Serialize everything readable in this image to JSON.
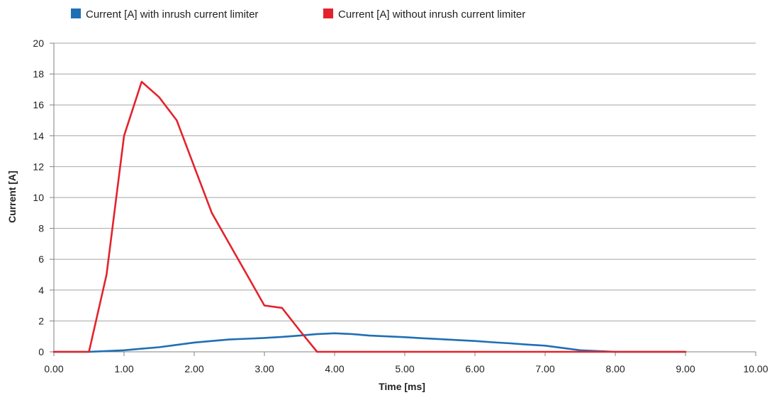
{
  "chart_data": {
    "type": "line",
    "xlabel": "Time [ms]",
    "ylabel": "Current [A]",
    "xlim": [
      0,
      10
    ],
    "ylim": [
      0,
      20
    ],
    "xticks": [
      0,
      1,
      2,
      3,
      4,
      5,
      6,
      7,
      8,
      9,
      10
    ],
    "xtick_labels": [
      "0.00",
      "1.00",
      "2.00",
      "3.00",
      "4.00",
      "5.00",
      "6.00",
      "7.00",
      "8.00",
      "9.00",
      "10.00"
    ],
    "yticks": [
      0,
      2,
      4,
      6,
      8,
      10,
      12,
      14,
      16,
      18,
      20
    ],
    "ytick_labels": [
      "0",
      "2",
      "4",
      "6",
      "8",
      "10",
      "12",
      "14",
      "16",
      "18",
      "20"
    ],
    "grid": "horizontal",
    "legend_position": "top-left",
    "series": [
      {
        "name": "Current [A] with inrush current limiter",
        "color": "#1f6fb5",
        "x": [
          0,
          0.25,
          0.5,
          0.75,
          1.0,
          1.25,
          1.5,
          1.75,
          2.0,
          2.25,
          2.5,
          2.75,
          3.0,
          3.25,
          3.5,
          3.75,
          4.0,
          4.25,
          4.5,
          4.75,
          5.0,
          5.25,
          5.5,
          5.75,
          6.0,
          6.25,
          6.5,
          6.75,
          7.0,
          7.25,
          7.5,
          7.75,
          8.0,
          8.25,
          8.5,
          8.75,
          9.0
        ],
        "y": [
          0,
          0,
          0,
          0.05,
          0.1,
          0.2,
          0.3,
          0.45,
          0.6,
          0.7,
          0.8,
          0.85,
          0.9,
          0.97,
          1.05,
          1.15,
          1.2,
          1.15,
          1.05,
          1.0,
          0.95,
          0.88,
          0.82,
          0.76,
          0.7,
          0.62,
          0.55,
          0.47,
          0.4,
          0.25,
          0.1,
          0.05,
          0,
          0,
          0,
          0,
          0
        ]
      },
      {
        "name": "Current [A] without inrush current limiter",
        "color": "#e3232c",
        "x": [
          0,
          0.25,
          0.5,
          0.75,
          1.0,
          1.25,
          1.5,
          1.75,
          2.0,
          2.25,
          2.5,
          2.75,
          3.0,
          3.25,
          3.5,
          3.75,
          4.0,
          4.5,
          5.0,
          5.5,
          6.0,
          6.5,
          7.0,
          7.5,
          8.0,
          8.5,
          9.0
        ],
        "y": [
          0,
          0,
          0,
          5,
          14,
          17.5,
          16.5,
          15,
          12,
          9,
          7,
          5,
          3,
          2.85,
          1.4,
          0,
          0,
          0,
          0,
          0,
          0,
          0,
          0,
          0,
          0,
          0,
          0
        ]
      }
    ]
  }
}
